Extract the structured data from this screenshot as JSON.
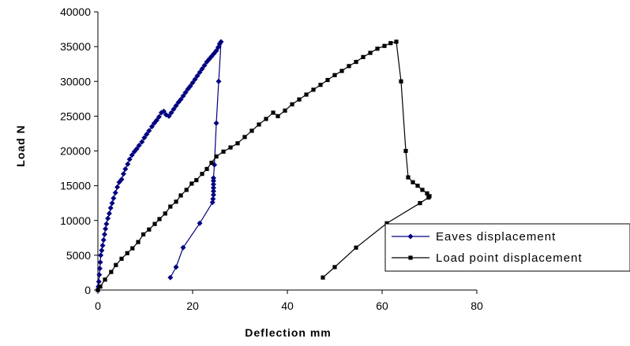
{
  "chart_data": {
    "type": "scatter",
    "title": "",
    "xlabel": "Deflection mm",
    "ylabel": "Load N",
    "xlim": [
      0,
      80
    ],
    "ylim": [
      0,
      40000
    ],
    "xticks": [
      "0",
      "20",
      "40",
      "60",
      "80"
    ],
    "yticks": [
      "0",
      "5000",
      "10000",
      "15000",
      "20000",
      "25000",
      "30000",
      "35000",
      "40000"
    ],
    "grid": false,
    "legend_position": "bottom-right",
    "series": [
      {
        "name": "Eaves displacement",
        "color": "#000080",
        "marker": "diamond",
        "points": [
          [
            0,
            0
          ],
          [
            0.1,
            500
          ],
          [
            0.2,
            1200
          ],
          [
            0.3,
            2200
          ],
          [
            0.4,
            3100
          ],
          [
            0.5,
            4000
          ],
          [
            0.6,
            5000
          ],
          [
            0.8,
            5700
          ],
          [
            1,
            6400
          ],
          [
            1.2,
            7200
          ],
          [
            1.4,
            8000
          ],
          [
            1.6,
            8800
          ],
          [
            1.8,
            9500
          ],
          [
            2.1,
            10300
          ],
          [
            2.4,
            11000
          ],
          [
            2.7,
            11800
          ],
          [
            3,
            12500
          ],
          [
            3.3,
            13200
          ],
          [
            3.7,
            14000
          ],
          [
            4.1,
            14800
          ],
          [
            4.5,
            15500
          ],
          [
            5,
            15900
          ],
          [
            5.4,
            16700
          ],
          [
            5.8,
            17400
          ],
          [
            6.3,
            18100
          ],
          [
            6.7,
            18800
          ],
          [
            7.2,
            19400
          ],
          [
            7.7,
            19900
          ],
          [
            8.2,
            20300
          ],
          [
            8.7,
            20800
          ],
          [
            9.3,
            21300
          ],
          [
            9.8,
            21900
          ],
          [
            10.3,
            22400
          ],
          [
            10.8,
            22900
          ],
          [
            11.4,
            23500
          ],
          [
            11.9,
            24000
          ],
          [
            12.4,
            24400
          ],
          [
            12.9,
            24900
          ],
          [
            13.4,
            25500
          ],
          [
            13.9,
            25700
          ],
          [
            14.4,
            25200
          ],
          [
            15,
            25000
          ],
          [
            15.5,
            25500
          ],
          [
            16,
            26000
          ],
          [
            16.5,
            26500
          ],
          [
            17,
            27000
          ],
          [
            17.5,
            27400
          ],
          [
            18,
            27900
          ],
          [
            18.5,
            28400
          ],
          [
            19,
            28900
          ],
          [
            19.5,
            29300
          ],
          [
            20,
            29800
          ],
          [
            20.5,
            30300
          ],
          [
            21,
            30800
          ],
          [
            21.5,
            31300
          ],
          [
            22,
            31800
          ],
          [
            22.5,
            32300
          ],
          [
            23,
            32800
          ],
          [
            23.5,
            33200
          ],
          [
            24,
            33600
          ],
          [
            24.5,
            34000
          ],
          [
            25,
            34400
          ],
          [
            25.4,
            34900
          ],
          [
            25.7,
            35400
          ],
          [
            26,
            35700
          ],
          [
            25.5,
            30000
          ],
          [
            25,
            24000
          ],
          [
            24.6,
            18000
          ],
          [
            24.4,
            16100
          ],
          [
            24.4,
            15700
          ],
          [
            24.4,
            15200
          ],
          [
            24.4,
            14700
          ],
          [
            24.4,
            14200
          ],
          [
            24.4,
            13700
          ],
          [
            24.3,
            13100
          ],
          [
            24.2,
            12600
          ],
          [
            21.5,
            9600
          ],
          [
            18,
            6100
          ],
          [
            16.5,
            3300
          ],
          [
            15.3,
            1800
          ]
        ]
      },
      {
        "name": "Load point displacement",
        "color": "#000000",
        "marker": "square",
        "points": [
          [
            0,
            0
          ],
          [
            0.5,
            500
          ],
          [
            1.5,
            1500
          ],
          [
            2.8,
            2600
          ],
          [
            3.8,
            3600
          ],
          [
            5,
            4500
          ],
          [
            6.2,
            5300
          ],
          [
            7.3,
            6000
          ],
          [
            8.5,
            6900
          ],
          [
            9.6,
            8000
          ],
          [
            10.8,
            8700
          ],
          [
            12,
            9500
          ],
          [
            13,
            10200
          ],
          [
            14.2,
            11000
          ],
          [
            15.3,
            12000
          ],
          [
            16.5,
            12700
          ],
          [
            17.5,
            13600
          ],
          [
            18.7,
            14400
          ],
          [
            19.8,
            15300
          ],
          [
            20.8,
            15800
          ],
          [
            22,
            16700
          ],
          [
            23,
            17400
          ],
          [
            24,
            18300
          ],
          [
            25,
            19200
          ],
          [
            26.5,
            19900
          ],
          [
            28,
            20500
          ],
          [
            29.5,
            21100
          ],
          [
            31,
            22000
          ],
          [
            32.5,
            22900
          ],
          [
            34,
            23800
          ],
          [
            35.5,
            24600
          ],
          [
            37,
            25500
          ],
          [
            38,
            25000
          ],
          [
            39.5,
            25800
          ],
          [
            41,
            26700
          ],
          [
            42.5,
            27400
          ],
          [
            44,
            28100
          ],
          [
            45.5,
            28800
          ],
          [
            47,
            29500
          ],
          [
            48.5,
            30200
          ],
          [
            50,
            30900
          ],
          [
            51.5,
            31500
          ],
          [
            53,
            32200
          ],
          [
            54.5,
            32800
          ],
          [
            56,
            33500
          ],
          [
            57.5,
            34100
          ],
          [
            59,
            34700
          ],
          [
            60.5,
            35100
          ],
          [
            61.8,
            35500
          ],
          [
            63,
            35700
          ],
          [
            64,
            30000
          ],
          [
            65,
            20000
          ],
          [
            65.5,
            16200
          ],
          [
            66.5,
            15500
          ],
          [
            67.5,
            15000
          ],
          [
            68.5,
            14400
          ],
          [
            69.5,
            13900
          ],
          [
            70,
            13500
          ],
          [
            69.8,
            13300
          ],
          [
            68,
            12500
          ],
          [
            61,
            9600
          ],
          [
            54.5,
            6100
          ],
          [
            50,
            3300
          ],
          [
            47.5,
            1800
          ]
        ]
      }
    ]
  }
}
